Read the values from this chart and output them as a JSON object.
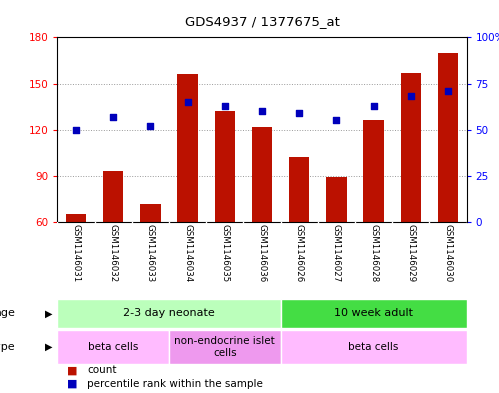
{
  "title": "GDS4937 / 1377675_at",
  "samples": [
    "GSM1146031",
    "GSM1146032",
    "GSM1146033",
    "GSM1146034",
    "GSM1146035",
    "GSM1146036",
    "GSM1146026",
    "GSM1146027",
    "GSM1146028",
    "GSM1146029",
    "GSM1146030"
  ],
  "counts": [
    65,
    93,
    72,
    156,
    132,
    122,
    102,
    89,
    126,
    157,
    170
  ],
  "percentiles": [
    50,
    57,
    52,
    65,
    63,
    60,
    59,
    55,
    63,
    68,
    71
  ],
  "ylim_left": [
    60,
    180
  ],
  "ylim_right": [
    0,
    100
  ],
  "yticks_left": [
    60,
    90,
    120,
    150,
    180
  ],
  "yticks_right": [
    0,
    25,
    50,
    75,
    100
  ],
  "bar_color": "#bb1100",
  "dot_color": "#0000bb",
  "bar_width": 0.55,
  "grid_color": "#999999",
  "age_groups": [
    {
      "label": "2-3 day neonate",
      "start": 0,
      "end": 6,
      "color": "#bbffbb"
    },
    {
      "label": "10 week adult",
      "start": 6,
      "end": 11,
      "color": "#44dd44"
    }
  ],
  "cell_type_groups": [
    {
      "label": "beta cells",
      "start": 0,
      "end": 3,
      "color": "#ffbbff"
    },
    {
      "label": "non-endocrine islet\ncells",
      "start": 3,
      "end": 6,
      "color": "#ee99ee"
    },
    {
      "label": "beta cells",
      "start": 6,
      "end": 11,
      "color": "#ffbbff"
    }
  ],
  "legend_items": [
    {
      "color": "#bb1100",
      "label": "count"
    },
    {
      "color": "#0000bb",
      "label": "percentile rank within the sample"
    }
  ],
  "background_color": "#ffffff",
  "tick_label_bg": "#cccccc"
}
